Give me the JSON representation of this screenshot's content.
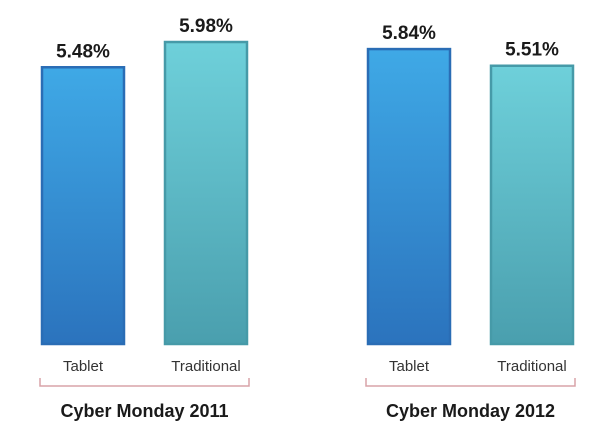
{
  "chart_data": {
    "type": "bar",
    "grid": false,
    "legend": "none",
    "groups": [
      {
        "label": "Cyber Monday 2011",
        "bars": [
          {
            "category": "Tablet",
            "value": 5.48,
            "value_label": "5.48%"
          },
          {
            "category": "Traditional",
            "value": 5.98,
            "value_label": "5.98%"
          }
        ]
      },
      {
        "label": "Cyber Monday 2012",
        "bars": [
          {
            "category": "Tablet",
            "value": 5.84,
            "value_label": "5.84%"
          },
          {
            "category": "Traditional",
            "value": 5.51,
            "value_label": "5.51%"
          }
        ]
      }
    ]
  },
  "colors": {
    "Tablet": {
      "top": "#3fa9e6",
      "bottom": "#2b73bd",
      "stroke": "#2a6db5"
    },
    "Traditional": {
      "top": "#6ed0da",
      "bottom": "#4a9fae",
      "stroke": "#469aa8"
    },
    "bracket": "#d9a3a8"
  }
}
